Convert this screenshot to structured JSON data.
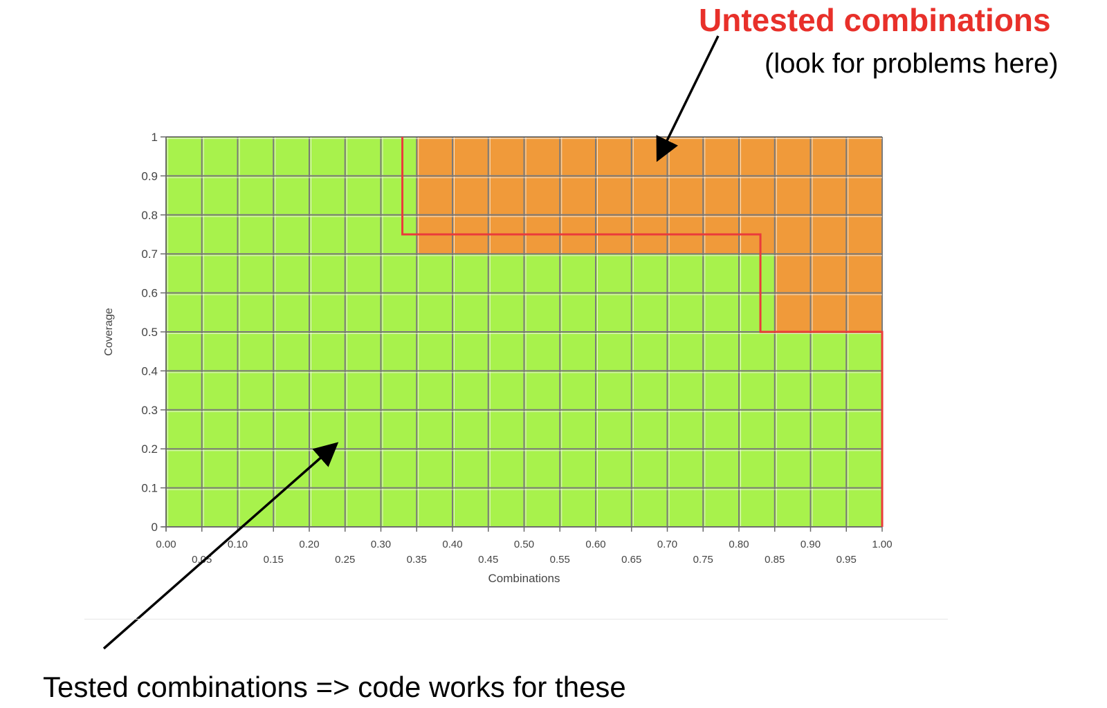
{
  "annotations": {
    "untested_title": "Untested combinations",
    "untested_sub": "(look for problems here)",
    "tested": "Tested combinations => code works for these"
  },
  "colors": {
    "tested": "#a8f24c",
    "untested": "#f09a3a",
    "boundary": "#ea3b3b",
    "grid": "#7a7a7a",
    "title_red": "#e8302a"
  },
  "chart_data": {
    "type": "heatmap",
    "xlabel": "Combinations",
    "ylabel": "Coverage",
    "xlim": [
      0,
      1
    ],
    "ylim": [
      0,
      1
    ],
    "x_step": 0.05,
    "y_step": 0.1,
    "x_ticks": [
      "0.00",
      "0.05",
      "0.10",
      "0.15",
      "0.20",
      "0.25",
      "0.30",
      "0.35",
      "0.40",
      "0.45",
      "0.50",
      "0.55",
      "0.60",
      "0.65",
      "0.70",
      "0.75",
      "0.80",
      "0.85",
      "0.90",
      "0.95",
      "1.00"
    ],
    "y_ticks": [
      "0",
      "0.1",
      "0.2",
      "0.3",
      "0.4",
      "0.5",
      "0.6",
      "0.7",
      "0.8",
      "0.9",
      "1"
    ],
    "boundary": [
      [
        0.33,
        1.0
      ],
      [
        0.33,
        0.75
      ],
      [
        0.83,
        0.75
      ],
      [
        0.83,
        0.5
      ],
      [
        1.0,
        0.5
      ],
      [
        1.0,
        0.0
      ]
    ],
    "regions": [
      {
        "name": "tested",
        "color_key": "tested"
      },
      {
        "name": "untested",
        "color_key": "untested"
      }
    ]
  }
}
